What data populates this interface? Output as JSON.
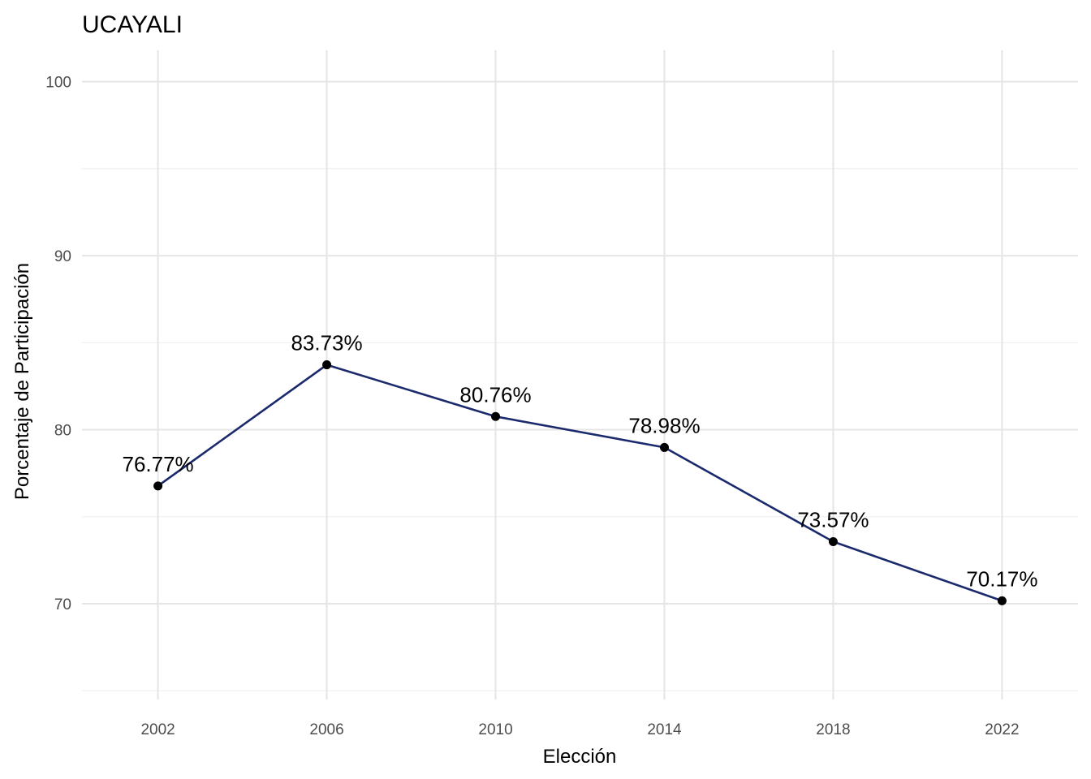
{
  "chart_data": {
    "type": "line",
    "title": "UCAYALI",
    "xlabel": "Elección",
    "ylabel": "Porcentaje de Participación",
    "x": [
      2002,
      2006,
      2010,
      2014,
      2018,
      2022
    ],
    "values": [
      76.77,
      83.73,
      80.76,
      78.98,
      73.57,
      70.17
    ],
    "data_labels": [
      "76.77%",
      "83.73%",
      "80.76%",
      "78.98%",
      "73.57%",
      "70.17%"
    ],
    "x_ticks": [
      "2002",
      "2006",
      "2010",
      "2014",
      "2018",
      "2022"
    ],
    "y_ticks": [
      "70",
      "80",
      "90",
      "100"
    ],
    "y_tick_values": [
      70,
      80,
      90,
      100
    ],
    "ylim": [
      64.5,
      101.8
    ],
    "xlim": [
      2000.2,
      2023.8
    ],
    "grid": true,
    "legend": "none",
    "colors": {
      "line": "#1a2a6c",
      "point": "#000000"
    }
  }
}
